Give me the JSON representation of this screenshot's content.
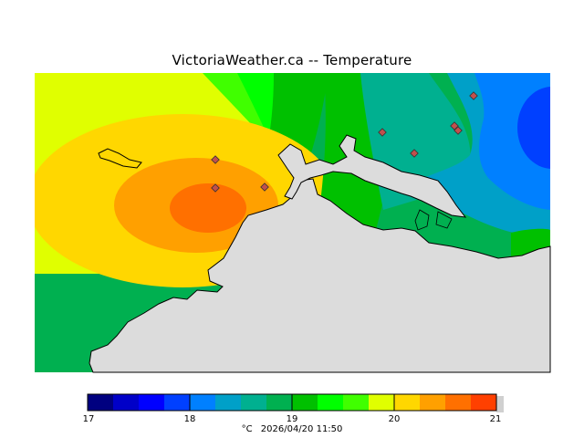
{
  "map": {
    "title": "VictoriaWeather.ca -- Temperature"
  },
  "colorbar": {
    "tick_labels": [
      "17",
      "18",
      "19",
      "20",
      "21"
    ],
    "units": "°C",
    "timestamp": "2026/04/20 11:50",
    "colors": [
      "#000080",
      "#0000c8",
      "#0000ff",
      "#0040ff",
      "#0080ff",
      "#00a0c8",
      "#00b090",
      "#00b050",
      "#00c000",
      "#00ff00",
      "#40ff00",
      "#e0ff00",
      "#ffd700",
      "#ffa000",
      "#ff7000",
      "#ff4000",
      "#ff0000"
    ]
  }
}
